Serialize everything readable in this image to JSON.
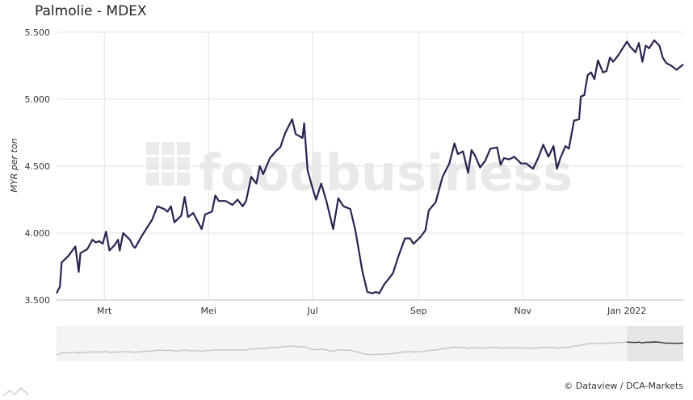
{
  "chart_data": {
    "type": "line",
    "title": "Palmolie - MDEX",
    "xlabel": "",
    "ylabel": "MYR per ton",
    "ylim": [
      3500,
      5500
    ],
    "y_ticks": [
      "3.500",
      "4.000",
      "4.500",
      "5.000",
      "5.500"
    ],
    "y_tick_values": [
      3500,
      4000,
      4500,
      5000,
      5500
    ],
    "x_range": [
      "2021-02-01",
      "2022-02-03"
    ],
    "x_ticks": [
      {
        "label": "Mrt",
        "date": "2021-03-01"
      },
      {
        "label": "Mei",
        "date": "2021-05-01"
      },
      {
        "label": "Jul",
        "date": "2021-07-01"
      },
      {
        "label": "Sep",
        "date": "2021-09-01"
      },
      {
        "label": "Nov",
        "date": "2021-11-01"
      },
      {
        "label": "Jan 2022",
        "date": "2022-01-01"
      }
    ],
    "grid": true,
    "legend": "none",
    "line_color": "#2e2050",
    "series": [
      {
        "points": [
          [
            "2021-02-01",
            3550
          ],
          [
            "2021-02-03",
            3600
          ],
          [
            "2021-02-04",
            3780
          ],
          [
            "2021-02-08",
            3830
          ],
          [
            "2021-02-12",
            3900
          ],
          [
            "2021-02-14",
            3710
          ],
          [
            "2021-02-15",
            3850
          ],
          [
            "2021-02-19",
            3880
          ],
          [
            "2021-02-22",
            3950
          ],
          [
            "2021-02-24",
            3930
          ],
          [
            "2021-02-26",
            3940
          ],
          [
            "2021-02-28",
            3920
          ],
          [
            "2021-03-02",
            4010
          ],
          [
            "2021-03-04",
            3870
          ],
          [
            "2021-03-07",
            3910
          ],
          [
            "2021-03-09",
            3950
          ],
          [
            "2021-03-10",
            3870
          ],
          [
            "2021-03-12",
            4000
          ],
          [
            "2021-03-16",
            3950
          ],
          [
            "2021-03-18",
            3900
          ],
          [
            "2021-03-19",
            3890
          ],
          [
            "2021-03-23",
            3980
          ],
          [
            "2021-03-27",
            4060
          ],
          [
            "2021-03-29",
            4100
          ],
          [
            "2021-04-01",
            4200
          ],
          [
            "2021-04-05",
            4180
          ],
          [
            "2021-04-07",
            4160
          ],
          [
            "2021-04-09",
            4200
          ],
          [
            "2021-04-11",
            4080
          ],
          [
            "2021-04-15",
            4130
          ],
          [
            "2021-04-17",
            4270
          ],
          [
            "2021-04-19",
            4120
          ],
          [
            "2021-04-22",
            4150
          ],
          [
            "2021-04-27",
            4030
          ],
          [
            "2021-04-29",
            4140
          ],
          [
            "2021-05-03",
            4160
          ],
          [
            "2021-05-05",
            4280
          ],
          [
            "2021-05-07",
            4240
          ],
          [
            "2021-05-11",
            4240
          ],
          [
            "2021-05-15",
            4210
          ],
          [
            "2021-05-18",
            4250
          ],
          [
            "2021-05-21",
            4200
          ],
          [
            "2021-05-23",
            4240
          ],
          [
            "2021-05-26",
            4420
          ],
          [
            "2021-05-29",
            4370
          ],
          [
            "2021-05-31",
            4500
          ],
          [
            "2021-06-02",
            4440
          ],
          [
            "2021-06-06",
            4560
          ],
          [
            "2021-06-10",
            4620
          ],
          [
            "2021-06-12",
            4640
          ],
          [
            "2021-06-15",
            4750
          ],
          [
            "2021-06-19",
            4850
          ],
          [
            "2021-06-21",
            4740
          ],
          [
            "2021-06-25",
            4710
          ],
          [
            "2021-06-26",
            4820
          ],
          [
            "2021-06-28",
            4470
          ],
          [
            "2021-07-01",
            4330
          ],
          [
            "2021-07-03",
            4250
          ],
          [
            "2021-07-06",
            4370
          ],
          [
            "2021-07-09",
            4240
          ],
          [
            "2021-07-13",
            4030
          ],
          [
            "2021-07-16",
            4260
          ],
          [
            "2021-07-19",
            4200
          ],
          [
            "2021-07-23",
            4180
          ],
          [
            "2021-07-26",
            4020
          ],
          [
            "2021-07-30",
            3720
          ],
          [
            "2021-08-02",
            3560
          ],
          [
            "2021-08-05",
            3550
          ],
          [
            "2021-08-07",
            3560
          ],
          [
            "2021-08-09",
            3550
          ],
          [
            "2021-08-12",
            3620
          ],
          [
            "2021-08-14",
            3650
          ],
          [
            "2021-08-17",
            3700
          ],
          [
            "2021-08-20",
            3820
          ],
          [
            "2021-08-24",
            3960
          ],
          [
            "2021-08-27",
            3960
          ],
          [
            "2021-08-29",
            3920
          ],
          [
            "2021-09-02",
            3970
          ],
          [
            "2021-09-05",
            4020
          ],
          [
            "2021-09-07",
            4170
          ],
          [
            "2021-09-11",
            4230
          ],
          [
            "2021-09-15",
            4420
          ],
          [
            "2021-09-19",
            4520
          ],
          [
            "2021-09-22",
            4670
          ],
          [
            "2021-09-24",
            4590
          ],
          [
            "2021-09-27",
            4610
          ],
          [
            "2021-09-30",
            4450
          ],
          [
            "2021-10-02",
            4620
          ],
          [
            "2021-10-04",
            4580
          ],
          [
            "2021-10-07",
            4490
          ],
          [
            "2021-10-10",
            4540
          ],
          [
            "2021-10-13",
            4630
          ],
          [
            "2021-10-17",
            4640
          ],
          [
            "2021-10-19",
            4510
          ],
          [
            "2021-10-21",
            4560
          ],
          [
            "2021-10-24",
            4550
          ],
          [
            "2021-10-27",
            4570
          ],
          [
            "2021-10-31",
            4520
          ],
          [
            "2021-11-03",
            4520
          ],
          [
            "2021-11-07",
            4480
          ],
          [
            "2021-11-10",
            4560
          ],
          [
            "2021-11-13",
            4660
          ],
          [
            "2021-11-16",
            4570
          ],
          [
            "2021-11-19",
            4650
          ],
          [
            "2021-11-21",
            4480
          ],
          [
            "2021-11-23",
            4560
          ],
          [
            "2021-11-26",
            4650
          ],
          [
            "2021-11-28",
            4630
          ],
          [
            "2021-12-01",
            4840
          ],
          [
            "2021-12-04",
            4850
          ],
          [
            "2021-12-05",
            5020
          ],
          [
            "2021-12-07",
            5030
          ],
          [
            "2021-12-09",
            5180
          ],
          [
            "2021-12-11",
            5200
          ],
          [
            "2021-12-13",
            5150
          ],
          [
            "2021-12-15",
            5290
          ],
          [
            "2021-12-18",
            5200
          ],
          [
            "2021-12-20",
            5210
          ],
          [
            "2021-12-22",
            5310
          ],
          [
            "2021-12-24",
            5280
          ],
          [
            "2021-12-27",
            5330
          ],
          [
            "2021-12-30",
            5390
          ],
          [
            "2022-01-01",
            5430
          ],
          [
            "2022-01-03",
            5390
          ],
          [
            "2022-01-06",
            5350
          ],
          [
            "2022-01-08",
            5420
          ],
          [
            "2022-01-10",
            5280
          ],
          [
            "2022-01-12",
            5400
          ],
          [
            "2022-01-14",
            5380
          ],
          [
            "2022-01-17",
            5440
          ],
          [
            "2022-01-20",
            5400
          ],
          [
            "2022-01-22",
            5310
          ],
          [
            "2022-01-24",
            5270
          ],
          [
            "2022-01-27",
            5250
          ],
          [
            "2022-01-28",
            5240
          ],
          [
            "2022-01-30",
            5220
          ],
          [
            "2022-02-01",
            5240
          ],
          [
            "2022-02-03",
            5260
          ]
        ]
      }
    ],
    "navigator_highlight": [
      "2022-01-01",
      "2022-02-03"
    ],
    "credits": "© Dataview / DCA-Markets",
    "watermark": "foodbusiness"
  }
}
